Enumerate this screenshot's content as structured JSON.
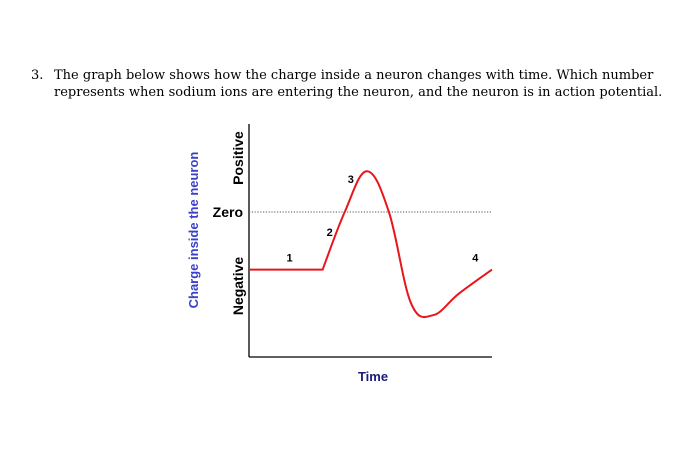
{
  "question": {
    "number": "3.",
    "line1": "The graph below shows how the charge inside a neuron changes with time. Which number",
    "line2": "represents when sodium ions are entering the neuron, and the neuron is in action potential."
  },
  "chart_data": {
    "type": "line",
    "title": "",
    "xlabel": "Time",
    "ylabel": "Charge inside the neuron",
    "y_region_labels": {
      "positive": "Positive",
      "zero": "Zero",
      "negative": "Negative"
    },
    "x_ticks": false,
    "y_ticks": false,
    "grid": false,
    "reference_line": {
      "y": 0,
      "style": "dotted"
    },
    "series": [
      {
        "color": "#e8161b",
        "points": [
          {
            "x": 0,
            "y": -1.2
          },
          {
            "x": 1,
            "y": -1.2
          },
          {
            "x": 1.3,
            "y": 0
          },
          {
            "x": 1.6,
            "y": 0.85
          },
          {
            "x": 1.9,
            "y": 0
          },
          {
            "x": 2.2,
            "y": -1.9
          },
          {
            "x": 2.5,
            "y": -2.15
          },
          {
            "x": 2.85,
            "y": -1.7
          },
          {
            "x": 3.3,
            "y": -1.2
          }
        ]
      }
    ],
    "point_labels": [
      {
        "label": "1",
        "x": 0.55,
        "y": -1.2
      },
      {
        "label": "2",
        "x": 1.15,
        "y": -0.5
      },
      {
        "label": "3",
        "x": 1.45,
        "y": 0.6
      },
      {
        "label": "4",
        "x": 3.1,
        "y": -1.2
      }
    ],
    "xlim": [
      0,
      3.3
    ],
    "ylim": [
      -2.5,
      1.3
    ],
    "colors": {
      "curve": "#e8161b",
      "ylabel": "#3a41c8",
      "text": "#000000"
    }
  }
}
